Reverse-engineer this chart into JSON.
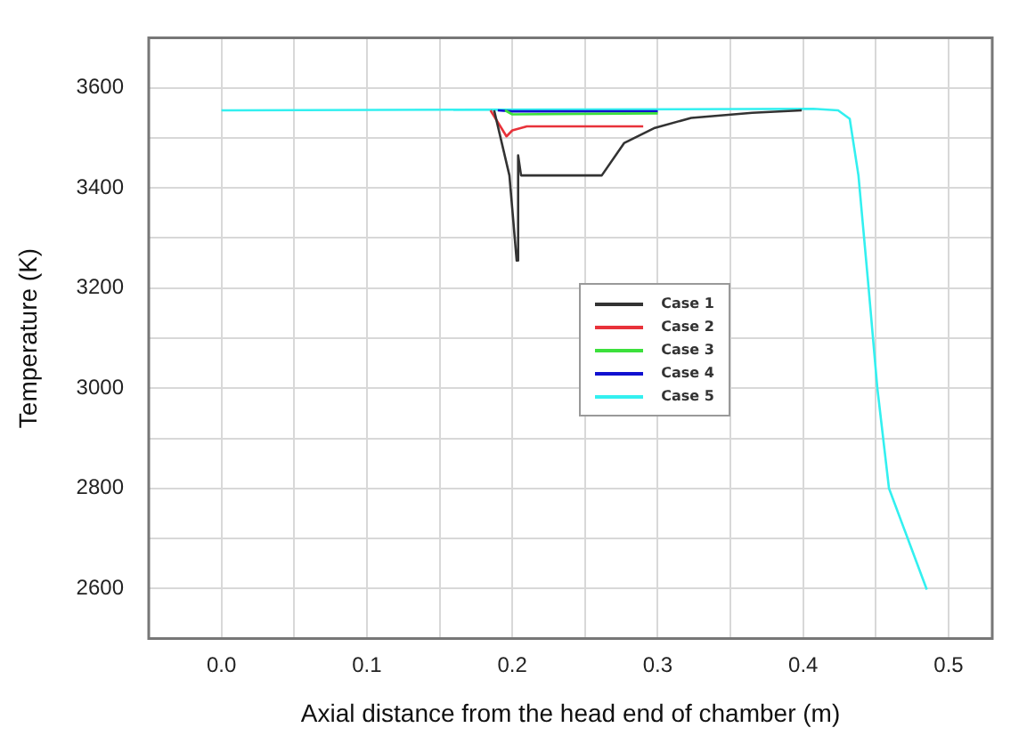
{
  "chart_data": {
    "type": "line",
    "xlabel": "Axial distance from the head end of chamber (m)",
    "ylabel": "Temperature (K)",
    "xlim": [
      -0.05,
      0.53
    ],
    "xticks": [
      {
        "value": 0,
        "label": "0.0"
      },
      {
        "value": 0.05,
        "label": null
      },
      0.1,
      {
        "value": 0.15,
        "label": null
      },
      0.2,
      {
        "value": 0.25,
        "label": null
      },
      0.3,
      {
        "value": 0.35,
        "label": null
      },
      0.4,
      {
        "value": 0.45,
        "label": null
      },
      0.5
    ],
    "ylim": [
      2500,
      3700
    ],
    "yticks": [
      {
        "value": 2500,
        "label": null
      },
      2600,
      {
        "value": 2700,
        "label": null
      },
      2800,
      {
        "value": 2900,
        "label": null
      },
      3000,
      {
        "value": 3100,
        "label": null
      },
      3200,
      {
        "value": 3300,
        "label": null
      },
      3400,
      {
        "value": 3500,
        "label": null
      },
      3600
    ],
    "grid": true,
    "legend": "center",
    "marker": "none",
    "line_style": "solid",
    "series": [
      {
        "name": "Case 1",
        "color": "#333333",
        "x": [
          0.1875,
          0.198,
          0.203,
          0.204,
          0.206,
          0.2615,
          0.277,
          0.298,
          0.323,
          0.365,
          0.399
        ],
        "values": [
          3555,
          3425,
          3255,
          3465,
          3425,
          3425,
          3490,
          3520,
          3540,
          3550,
          3555
        ]
      },
      {
        "name": "Case 2",
        "color": "#e8323a",
        "x": [
          0.185,
          0.196,
          0.2,
          0.21,
          0.29
        ],
        "values": [
          3555,
          3503,
          3515,
          3523,
          3523
        ]
      },
      {
        "name": "Case 3",
        "color": "#3ce03c",
        "x": [
          0.195,
          0.2,
          0.3
        ],
        "values": [
          3555,
          3547,
          3549
        ]
      },
      {
        "name": "Case 4",
        "color": "#1010d0",
        "x": [
          0.19,
          0.2,
          0.3
        ],
        "values": [
          3555,
          3553,
          3553
        ]
      },
      {
        "name": "Case 5",
        "color": "#33f0f0",
        "x": [
          0,
          0.407,
          0.424,
          0.432,
          0.438,
          0.445,
          0.451,
          0.459,
          0.485
        ],
        "values": [
          3555,
          3558,
          3555,
          3538,
          3425,
          3200,
          3000,
          2800,
          2598
        ]
      }
    ]
  }
}
